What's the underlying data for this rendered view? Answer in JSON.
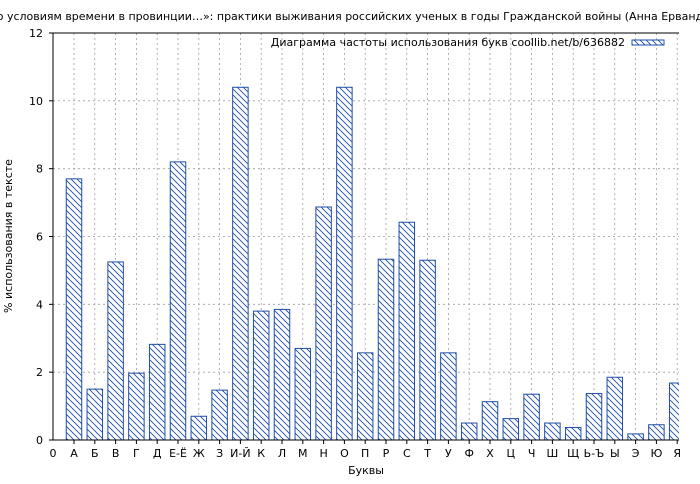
{
  "chart_data": {
    "type": "bar",
    "title": "«…Находясь по условиям времени в провинции…»: практики выживания российских ученых в годы Гражданской войны (Анна Ервандовна Иванова)",
    "xlabel": "Буквы",
    "ylabel": "% использования в тексте",
    "legend": "Диаграмма частоты использования букв coollib.net/b/636882",
    "legend_position": "top-right",
    "grid": true,
    "ylim": [
      0,
      12
    ],
    "yticks": [
      0,
      2,
      4,
      6,
      8,
      10,
      12
    ],
    "x_origin_label": "0",
    "categories": [
      "А",
      "Б",
      "В",
      "Г",
      "Д",
      "Е-Ё",
      "Ж",
      "З",
      "И-Й",
      "К",
      "Л",
      "М",
      "Н",
      "О",
      "П",
      "Р",
      "С",
      "Т",
      "У",
      "Ф",
      "Х",
      "Ц",
      "Ч",
      "Ш",
      "Щ",
      "Ь-Ъ",
      "Ы",
      "Э",
      "Ю",
      "Я"
    ],
    "values": [
      7.7,
      1.5,
      5.25,
      1.97,
      2.82,
      8.2,
      0.7,
      1.47,
      10.4,
      3.8,
      3.85,
      2.7,
      6.87,
      10.4,
      2.57,
      5.33,
      6.42,
      5.3,
      2.57,
      0.5,
      1.13,
      0.63,
      1.35,
      0.5,
      0.37,
      1.37,
      1.85,
      0.18,
      0.45,
      1.68
    ],
    "colors": {
      "bar_stroke": "#1f4ea8",
      "bar_hatch": "#1f4ea8",
      "bar_fill": "#ffffff",
      "grid": "#a0a0a0",
      "axis": "#000000"
    }
  }
}
